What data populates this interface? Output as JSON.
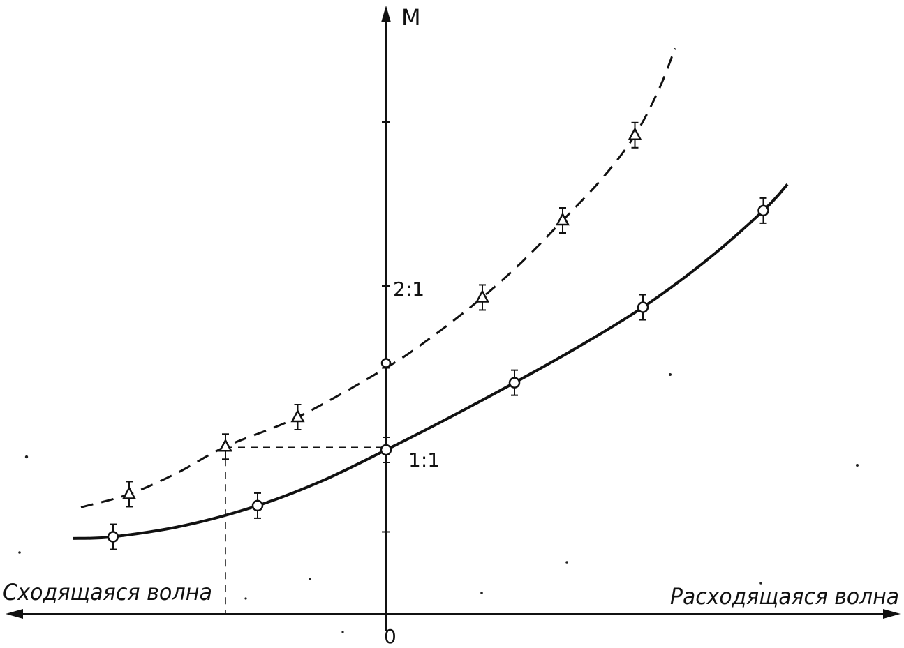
{
  "chart_data": {
    "type": "line",
    "y_axis_label": "M",
    "x_origin_label": "0",
    "left_label": "Сходящаяся волна",
    "right_label": "Расходящаяся волна",
    "y_tick_labels": [
      {
        "value": 2.0,
        "text": "2:1"
      },
      {
        "value": 1.0,
        "text": "1:1"
      }
    ],
    "xlim": [
      -4.0,
      5.0
    ],
    "ylim": [
      0.0,
      3.6
    ],
    "series": [
      {
        "style": "solid",
        "marker": "circle",
        "points": [
          [
            -3.4,
            0.47
          ],
          [
            -1.6,
            0.66
          ],
          [
            0.0,
            1.0
          ],
          [
            1.6,
            1.41
          ],
          [
            3.2,
            1.87
          ],
          [
            4.7,
            2.46
          ]
        ],
        "curve": [
          [
            -3.9,
            0.46
          ],
          [
            -3.4,
            0.47
          ],
          [
            -2.5,
            0.54
          ],
          [
            -1.6,
            0.66
          ],
          [
            -0.8,
            0.81
          ],
          [
            0.0,
            1.0
          ],
          [
            0.8,
            1.2
          ],
          [
            1.6,
            1.41
          ],
          [
            2.4,
            1.63
          ],
          [
            3.2,
            1.87
          ],
          [
            4.0,
            2.16
          ],
          [
            4.7,
            2.46
          ],
          [
            5.0,
            2.62
          ]
        ]
      },
      {
        "style": "dashed",
        "marker": "triangle",
        "points": [
          [
            -3.2,
            0.73
          ],
          [
            -2.0,
            1.02
          ],
          [
            -1.1,
            1.2
          ],
          [
            1.2,
            1.93
          ],
          [
            2.2,
            2.4
          ],
          [
            3.1,
            2.92
          ]
        ],
        "curve": [
          [
            -3.8,
            0.65
          ],
          [
            -3.2,
            0.73
          ],
          [
            -2.6,
            0.86
          ],
          [
            -2.0,
            1.02
          ],
          [
            -1.1,
            1.2
          ],
          [
            0.0,
            1.5
          ],
          [
            0.6,
            1.7
          ],
          [
            1.2,
            1.93
          ],
          [
            1.7,
            2.15
          ],
          [
            2.2,
            2.4
          ],
          [
            2.7,
            2.66
          ],
          [
            3.1,
            2.92
          ],
          [
            3.4,
            3.2
          ],
          [
            3.6,
            3.45
          ]
        ]
      }
    ],
    "guide_point": [
      -2.0,
      1.02
    ],
    "grid": false,
    "legend": "none"
  }
}
